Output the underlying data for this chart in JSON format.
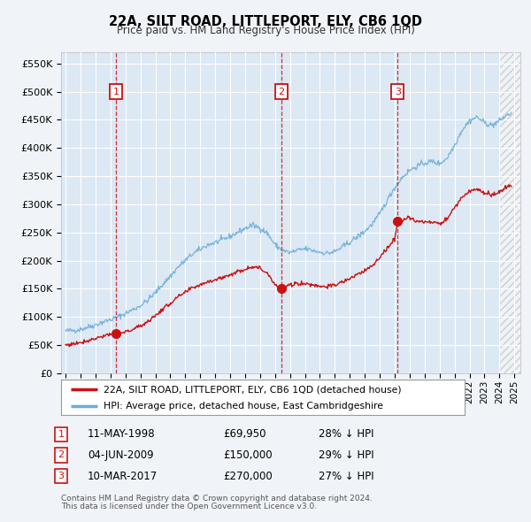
{
  "title": "22A, SILT ROAD, LITTLEPORT, ELY, CB6 1QD",
  "subtitle": "Price paid vs. HM Land Registry's House Price Index (HPI)",
  "ylabel_ticks": [
    "£0",
    "£50K",
    "£100K",
    "£150K",
    "£200K",
    "£250K",
    "£300K",
    "£350K",
    "£400K",
    "£450K",
    "£500K",
    "£550K"
  ],
  "ytick_values": [
    0,
    50000,
    100000,
    150000,
    200000,
    250000,
    300000,
    350000,
    400000,
    450000,
    500000,
    550000
  ],
  "xlim_start": 1994.7,
  "xlim_end": 2025.4,
  "ylim_min": 0,
  "ylim_max": 570000,
  "background_color": "#f0f4f8",
  "plot_bg_color": "#dce8f4",
  "grid_color": "#ffffff",
  "hpi_line_color": "#6baed6",
  "price_line_color": "#cc1111",
  "sale_marker_color": "#cc1111",
  "sale_vline_color": "#cc1111",
  "transaction_box_color": "#cc1111",
  "hatch_start": 2024.0,
  "transactions": [
    {
      "num": 1,
      "date_num": 1998.36,
      "price": 69950,
      "label": "1",
      "date_str": "11-MAY-1998",
      "price_str": "£69,950",
      "hpi_rel": "28% ↓ HPI"
    },
    {
      "num": 2,
      "date_num": 2009.42,
      "price": 150000,
      "label": "2",
      "date_str": "04-JUN-2009",
      "price_str": "£150,000",
      "hpi_rel": "29% ↓ HPI"
    },
    {
      "num": 3,
      "date_num": 2017.19,
      "price": 270000,
      "label": "3",
      "date_str": "10-MAR-2017",
      "price_str": "£270,000",
      "hpi_rel": "27% ↓ HPI"
    }
  ],
  "legend_line1": "22A, SILT ROAD, LITTLEPORT, ELY, CB6 1QD (detached house)",
  "legend_line2": "HPI: Average price, detached house, East Cambridgeshire",
  "footer1": "Contains HM Land Registry data © Crown copyright and database right 2024.",
  "footer2": "This data is licensed under the Open Government Licence v3.0.",
  "xticks": [
    1995,
    1996,
    1997,
    1998,
    1999,
    2000,
    2001,
    2002,
    2003,
    2004,
    2005,
    2006,
    2007,
    2008,
    2009,
    2010,
    2011,
    2012,
    2013,
    2014,
    2015,
    2016,
    2017,
    2018,
    2019,
    2020,
    2021,
    2022,
    2023,
    2024,
    2025
  ]
}
